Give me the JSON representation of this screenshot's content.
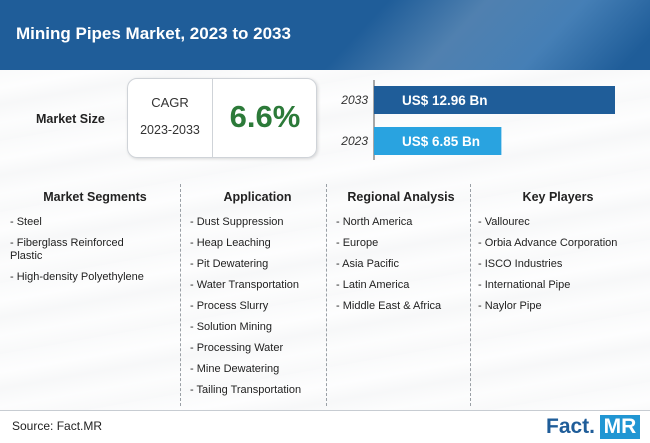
{
  "header": {
    "title": "Mining Pipes Market, 2023 to 2033"
  },
  "market_size": {
    "label": "Market Size",
    "cagr_label": "CAGR",
    "cagr_period": "2023-2033",
    "cagr_value": "6.6%"
  },
  "chart_data": {
    "type": "bar",
    "orientation": "horizontal",
    "categories": [
      "2033",
      "2023"
    ],
    "values": [
      12.96,
      6.85
    ],
    "value_labels": [
      "US$ 12.96 Bn",
      "US$ 6.85 Bn"
    ],
    "unit": "US$ Bn",
    "colors": [
      "#1f5d99",
      "#29a3e0"
    ],
    "title": "",
    "xlabel": "",
    "ylabel": "",
    "grid": false
  },
  "segments": {
    "title": "Market Segments",
    "items": [
      "- Steel",
      "- Fiberglass Reinforced Plastic",
      "- High-density Polyethylene"
    ]
  },
  "application": {
    "title": "Application",
    "items": [
      "- Dust Suppression",
      "- Heap Leaching",
      "- Pit Dewatering",
      "- Water Transportation",
      "- Process Slurry",
      "- Solution Mining",
      "- Processing Water",
      "- Mine Dewatering",
      "- Tailing Transportation"
    ]
  },
  "regional": {
    "title": "Regional Analysis",
    "items": [
      "- North America",
      "- Europe",
      "- Asia Pacific",
      "- Latin America",
      "- Middle East & Africa"
    ]
  },
  "players": {
    "title": "Key Players",
    "items": [
      "- Vallourec",
      "- Orbia Advance Corporation",
      "- ISCO Industries",
      "- International Pipe",
      "- Naylor Pipe"
    ]
  },
  "footer": {
    "source": "Source: Fact.MR",
    "logo_fact": "Fact.",
    "logo_mr": "MR"
  }
}
